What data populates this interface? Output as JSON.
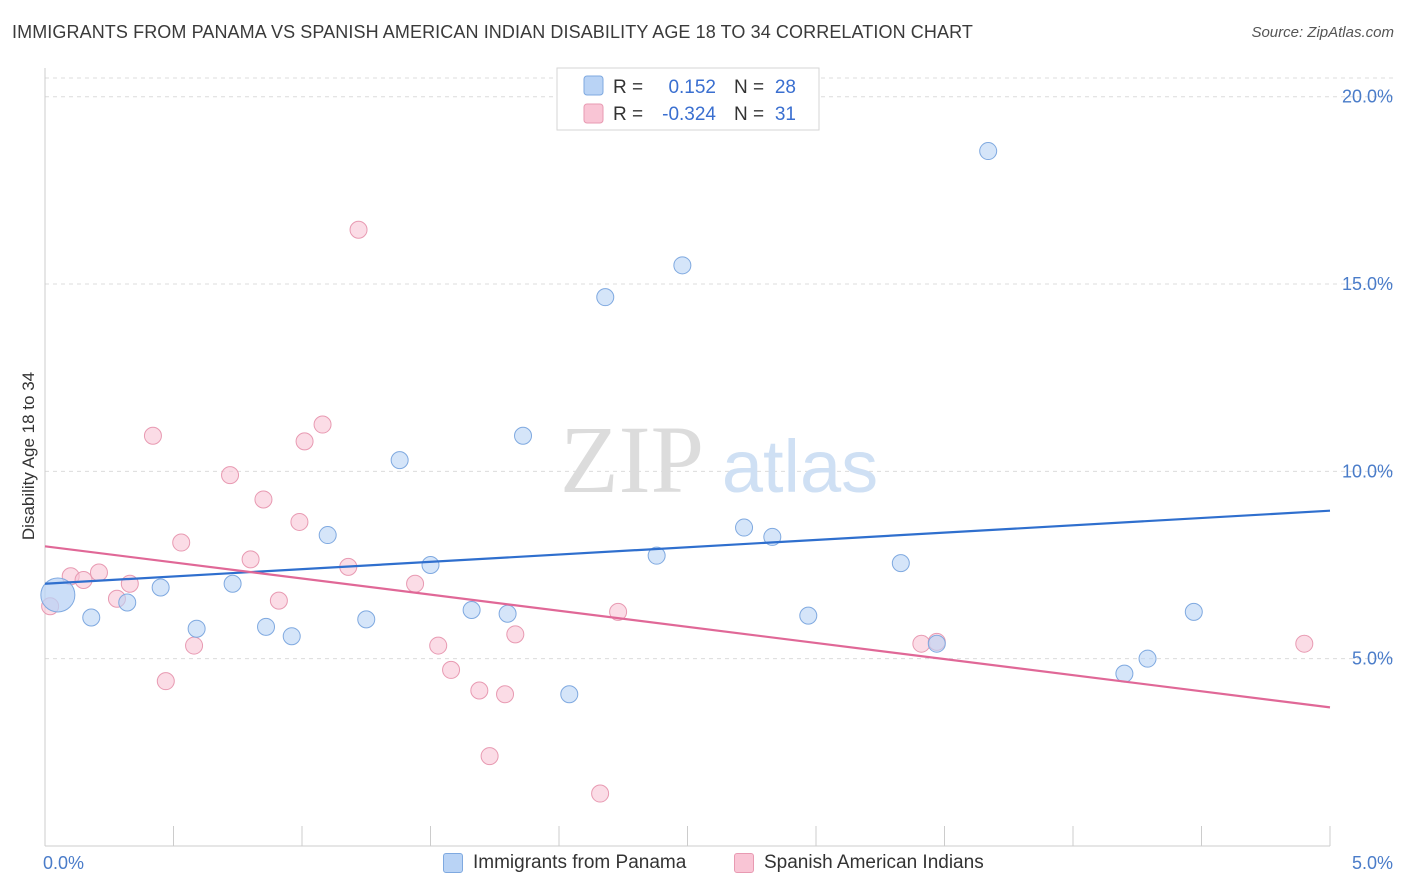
{
  "title": "IMMIGRANTS FROM PANAMA VS SPANISH AMERICAN INDIAN DISABILITY AGE 18 TO 34 CORRELATION CHART",
  "source": "Source: ZipAtlas.com",
  "watermark": {
    "zip": "ZIP",
    "atlas": "atlas"
  },
  "colors": {
    "blue_fill": "#b9d3f5",
    "blue_stroke": "#7fa9e0",
    "blue_line": "#2f6fce",
    "pink_fill": "#f9c5d5",
    "pink_stroke": "#e89ab2",
    "pink_line": "#e06897"
  },
  "legend": {
    "rows": [
      {
        "r_label": "R =",
        "r_value": "0.152",
        "n_label": "N =",
        "n_value": "28"
      },
      {
        "r_label": "R =",
        "r_value": "-0.324",
        "n_label": "N =",
        "n_value": "31"
      }
    ]
  },
  "chart_data": {
    "type": "scatter",
    "title": "IMMIGRANTS FROM PANAMA VS SPANISH AMERICAN INDIAN DISABILITY AGE 18 TO 34 CORRELATION CHART",
    "xlabel": "",
    "ylabel": "Disability Age 18 to 34",
    "xlim": [
      0,
      5
    ],
    "ylim": [
      0,
      20.5
    ],
    "x_tick_labels": [
      "0.0%",
      "5.0%"
    ],
    "y_ticks": [
      5,
      10,
      15,
      20
    ],
    "y_tick_labels": [
      "5.0%",
      "10.0%",
      "15.0%",
      "20.0%"
    ],
    "grid": "horizontal dashed",
    "legend_placement": "top-center and bottom",
    "series": [
      {
        "name": "Immigrants from Panama",
        "color": "blue",
        "points": [
          {
            "x": 0.05,
            "y": 6.7,
            "big": true
          },
          {
            "x": 0.18,
            "y": 6.1
          },
          {
            "x": 0.32,
            "y": 6.5
          },
          {
            "x": 0.45,
            "y": 6.9
          },
          {
            "x": 0.59,
            "y": 5.8
          },
          {
            "x": 0.73,
            "y": 7.0
          },
          {
            "x": 0.86,
            "y": 5.85
          },
          {
            "x": 0.96,
            "y": 5.6
          },
          {
            "x": 1.1,
            "y": 8.3
          },
          {
            "x": 1.25,
            "y": 6.05
          },
          {
            "x": 1.38,
            "y": 10.3
          },
          {
            "x": 1.5,
            "y": 7.5
          },
          {
            "x": 1.66,
            "y": 6.3
          },
          {
            "x": 1.8,
            "y": 6.2
          },
          {
            "x": 1.86,
            "y": 10.95
          },
          {
            "x": 2.04,
            "y": 4.05
          },
          {
            "x": 2.18,
            "y": 14.65
          },
          {
            "x": 2.38,
            "y": 7.75
          },
          {
            "x": 2.48,
            "y": 15.5
          },
          {
            "x": 2.72,
            "y": 8.5
          },
          {
            "x": 2.83,
            "y": 8.25
          },
          {
            "x": 2.97,
            "y": 6.15
          },
          {
            "x": 3.33,
            "y": 7.55
          },
          {
            "x": 3.47,
            "y": 5.4
          },
          {
            "x": 3.67,
            "y": 18.55
          },
          {
            "x": 4.2,
            "y": 4.6
          },
          {
            "x": 4.29,
            "y": 5.0
          },
          {
            "x": 4.47,
            "y": 6.25
          }
        ],
        "trend": {
          "x": [
            0,
            5
          ],
          "y": [
            7.0,
            8.95
          ]
        }
      },
      {
        "name": "Spanish American Indians",
        "color": "pink",
        "points": [
          {
            "x": 0.02,
            "y": 6.4
          },
          {
            "x": 0.1,
            "y": 7.2
          },
          {
            "x": 0.15,
            "y": 7.1
          },
          {
            "x": 0.21,
            "y": 7.3
          },
          {
            "x": 0.28,
            "y": 6.6
          },
          {
            "x": 0.33,
            "y": 7.0
          },
          {
            "x": 0.42,
            "y": 10.95
          },
          {
            "x": 0.47,
            "y": 4.4
          },
          {
            "x": 0.53,
            "y": 8.1
          },
          {
            "x": 0.58,
            "y": 5.35
          },
          {
            "x": 0.72,
            "y": 9.9
          },
          {
            "x": 0.8,
            "y": 7.65
          },
          {
            "x": 0.85,
            "y": 9.25
          },
          {
            "x": 0.91,
            "y": 6.55
          },
          {
            "x": 0.99,
            "y": 8.65
          },
          {
            "x": 1.01,
            "y": 10.8
          },
          {
            "x": 1.08,
            "y": 11.25
          },
          {
            "x": 1.18,
            "y": 7.45
          },
          {
            "x": 1.22,
            "y": 16.45
          },
          {
            "x": 1.44,
            "y": 7.0
          },
          {
            "x": 1.53,
            "y": 5.35
          },
          {
            "x": 1.58,
            "y": 4.7
          },
          {
            "x": 1.69,
            "y": 4.15
          },
          {
            "x": 1.73,
            "y": 2.4
          },
          {
            "x": 1.79,
            "y": 4.05
          },
          {
            "x": 1.83,
            "y": 5.65
          },
          {
            "x": 2.16,
            "y": 1.4
          },
          {
            "x": 2.23,
            "y": 6.25
          },
          {
            "x": 3.41,
            "y": 5.4
          },
          {
            "x": 3.47,
            "y": 5.45
          },
          {
            "x": 4.9,
            "y": 5.4
          }
        ],
        "trend": {
          "x": [
            0,
            5
          ],
          "y": [
            8.0,
            3.7
          ]
        }
      }
    ]
  }
}
